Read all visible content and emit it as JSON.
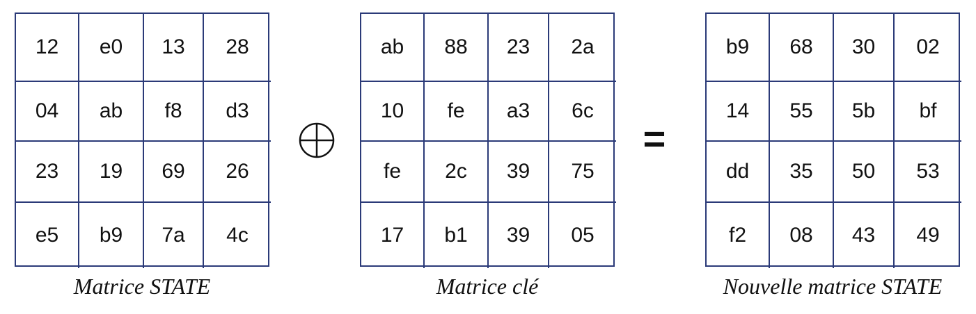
{
  "state_matrix": {
    "caption": "Matrice STATE",
    "rows": [
      [
        "12",
        "e0",
        "13",
        "28"
      ],
      [
        "04",
        "ab",
        "f8",
        "d3"
      ],
      [
        "23",
        "19",
        "69",
        "26"
      ],
      [
        "e5",
        "b9",
        "7a",
        "4c"
      ]
    ]
  },
  "key_matrix": {
    "caption": "Matrice clé",
    "rows": [
      [
        "ab",
        "88",
        "23",
        "2a"
      ],
      [
        "10",
        "fe",
        "a3",
        "6c"
      ],
      [
        "fe",
        "2c",
        "39",
        "75"
      ],
      [
        "17",
        "b1",
        "39",
        "05"
      ]
    ]
  },
  "new_state_matrix": {
    "caption": "Nouvelle matrice STATE",
    "rows": [
      [
        "b9",
        "68",
        "30",
        "02"
      ],
      [
        "14",
        "55",
        "5b",
        "bf"
      ],
      [
        "dd",
        "35",
        "50",
        "53"
      ],
      [
        "f2",
        "08",
        "43",
        "49"
      ]
    ]
  },
  "operators": {
    "xor_icon": "circled-plus-icon",
    "equals": "="
  },
  "colors": {
    "grid_border": "#2b3a78",
    "text": "#111111"
  }
}
